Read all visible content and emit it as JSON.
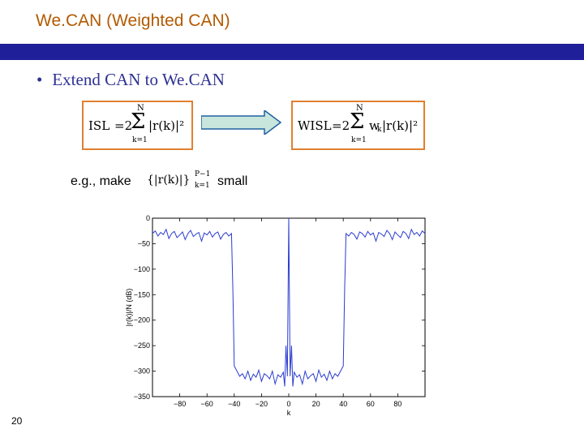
{
  "slide": {
    "title": "We.CAN (Weighted CAN)",
    "bullet": "Extend CAN to We.CAN",
    "bullet_marker": "•",
    "eg_prefix": "e.g., make",
    "eg_suffix": "small",
    "page_number": "20"
  },
  "formulas": {
    "isl": {
      "lhs": "ISL",
      "eq": "=2",
      "sum_top": "N",
      "sum_bottom": "k=1",
      "body": "|r(k)|²"
    },
    "wisl": {
      "lhs": "WISL",
      "eq": "=2",
      "sum_top": "N",
      "sum_bottom": "k=1",
      "body": "w",
      "sub": "k",
      "body2": "|r(k)|²"
    },
    "inline": {
      "body": "{|r(k)|}",
      "sup": "P−1",
      "sub": "k=1"
    }
  },
  "colors": {
    "title": "#b35a00",
    "bar": "#1f1f9a",
    "bullet": "#2e3192",
    "box_border": "#e08030",
    "arrow_fill": "#c8e6dc",
    "arrow_stroke": "#2060a0",
    "curve": "#2a3cd0"
  },
  "chart_data": {
    "type": "line",
    "title": "",
    "xlabel": "k",
    "ylabel": "|r(k)|/N (dB)",
    "xlim": [
      -100,
      100
    ],
    "ylim": [
      -350,
      0
    ],
    "xticks": [
      -80,
      -60,
      -40,
      -20,
      0,
      20,
      40,
      60,
      80
    ],
    "yticks": [
      0,
      -50,
      -100,
      -150,
      -200,
      -250,
      -300,
      -350
    ],
    "xtick_labels": [
      "−80",
      "−60",
      "−40",
      "−20",
      "0",
      "20",
      "40",
      "60",
      "80"
    ],
    "ytick_labels": [
      "0",
      "−50",
      "−100",
      "−150",
      "−200",
      "−250",
      "−300",
      "−350"
    ],
    "grid": false,
    "series": [
      {
        "name": "",
        "x": [
          -100,
          -98,
          -96,
          -94,
          -92,
          -90,
          -88,
          -86,
          -84,
          -82,
          -80,
          -78,
          -76,
          -74,
          -72,
          -70,
          -68,
          -66,
          -64,
          -62,
          -60,
          -58,
          -56,
          -54,
          -52,
          -50,
          -48,
          -46,
          -44,
          -42,
          -41,
          -40,
          -39,
          -38,
          -36,
          -34,
          -32,
          -30,
          -28,
          -26,
          -24,
          -22,
          -20,
          -18,
          -16,
          -14,
          -12,
          -10,
          -8,
          -6,
          -4,
          -3,
          -2,
          -1,
          0,
          1,
          2,
          3,
          4,
          6,
          8,
          10,
          12,
          14,
          16,
          18,
          20,
          22,
          24,
          26,
          28,
          30,
          32,
          34,
          36,
          38,
          39,
          40,
          41,
          42,
          44,
          46,
          48,
          50,
          52,
          54,
          56,
          58,
          60,
          62,
          64,
          66,
          68,
          70,
          72,
          74,
          76,
          78,
          80,
          82,
          84,
          86,
          88,
          90,
          92,
          94,
          96,
          98,
          100
        ],
        "y": [
          -30,
          -25,
          -35,
          -28,
          -32,
          -22,
          -40,
          -30,
          -26,
          -38,
          -33,
          -27,
          -42,
          -30,
          -24,
          -36,
          -31,
          -28,
          -45,
          -29,
          -33,
          -26,
          -37,
          -30,
          -27,
          -41,
          -32,
          -28,
          -35,
          -30,
          -140,
          -290,
          -295,
          -300,
          -310,
          -305,
          -315,
          -300,
          -318,
          -306,
          -312,
          -298,
          -320,
          -305,
          -309,
          -315,
          -300,
          -325,
          -307,
          -312,
          -302,
          -330,
          -250,
          -310,
          0,
          -310,
          -250,
          -330,
          -302,
          -312,
          -307,
          -325,
          -300,
          -315,
          -309,
          -305,
          -320,
          -298,
          -312,
          -306,
          -318,
          -300,
          -315,
          -305,
          -310,
          -300,
          -295,
          -290,
          -140,
          -30,
          -35,
          -28,
          -32,
          -41,
          -27,
          -30,
          -37,
          -26,
          -33,
          -29,
          -45,
          -28,
          -31,
          -36,
          -24,
          -30,
          -42,
          -27,
          -33,
          -38,
          -26,
          -30,
          -40,
          -22,
          -32,
          -28,
          -35,
          -25,
          -30
        ]
      }
    ]
  }
}
